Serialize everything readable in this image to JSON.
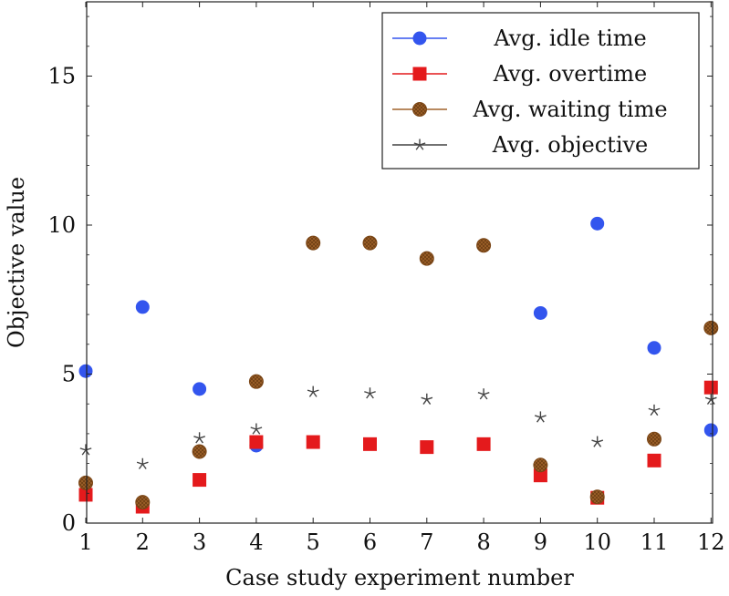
{
  "chart_data": {
    "type": "scatter",
    "title": "",
    "xlabel": "Case study experiment number",
    "ylabel": "Objective value",
    "xlim": [
      1,
      12
    ],
    "ylim": [
      0,
      17.5
    ],
    "x": [
      1,
      2,
      3,
      4,
      5,
      6,
      7,
      8,
      9,
      10,
      11,
      12
    ],
    "xticks": [
      "1",
      "2",
      "3",
      "4",
      "5",
      "6",
      "7",
      "8",
      "9",
      "10",
      "11",
      "12"
    ],
    "yticks": [
      0,
      5,
      10,
      15
    ],
    "ytick_labels": [
      "0",
      "5",
      "10",
      "15"
    ],
    "legend_position": "top-right",
    "series": [
      {
        "name": "Avg. idle time",
        "marker": "circle",
        "color": "#3355ee",
        "values": [
          5.1,
          7.25,
          4.5,
          2.6,
          null,
          null,
          null,
          null,
          7.05,
          10.05,
          5.88,
          3.12
        ]
      },
      {
        "name": "Avg. overtime",
        "marker": "square",
        "color": "#e41a1c",
        "values": [
          0.95,
          0.55,
          1.45,
          2.72,
          2.72,
          2.65,
          2.55,
          2.65,
          1.6,
          0.85,
          2.1,
          4.55
        ]
      },
      {
        "name": "Avg. waiting time",
        "marker": "circle-hatched",
        "color": "#a0622a",
        "values": [
          1.35,
          0.7,
          2.4,
          4.75,
          9.4,
          9.4,
          8.88,
          9.32,
          1.95,
          0.88,
          2.82,
          6.55
        ]
      },
      {
        "name": "Avg. objective",
        "marker": "star",
        "color": "#444444",
        "values": [
          2.45,
          1.98,
          2.85,
          3.15,
          4.4,
          4.35,
          4.15,
          4.32,
          3.55,
          2.72,
          3.78,
          4.15
        ]
      }
    ]
  }
}
